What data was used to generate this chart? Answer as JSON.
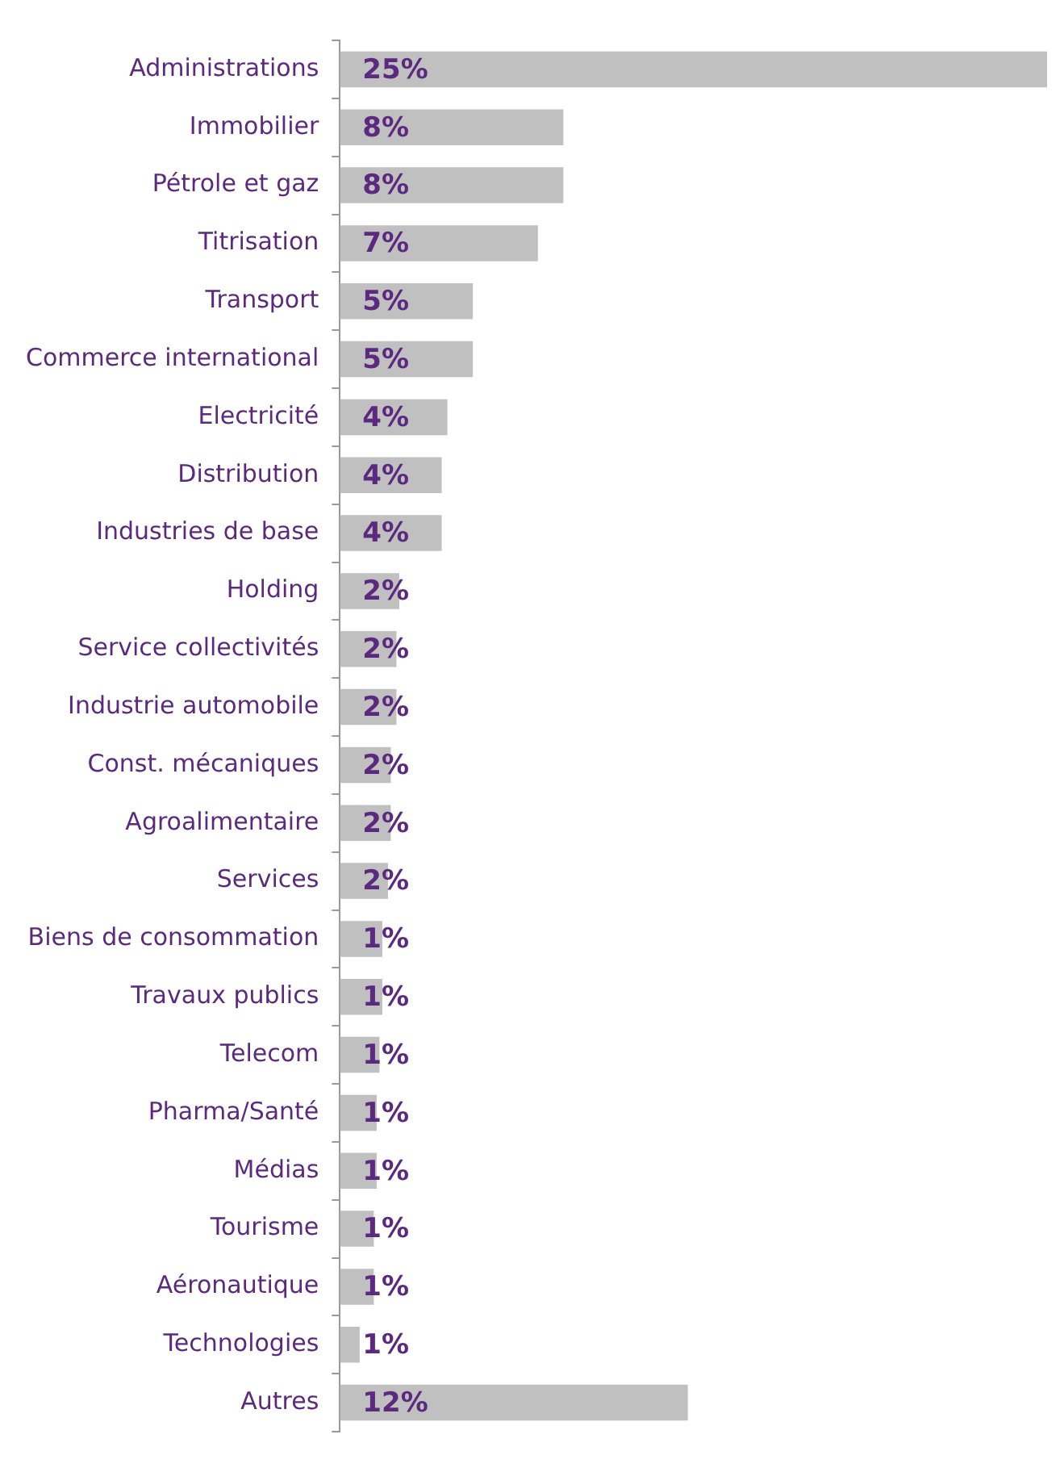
{
  "chart_data": {
    "type": "bar",
    "orientation": "horizontal",
    "categories": [
      "Administrations",
      "Immobilier",
      "Pétrole et gaz",
      "Titrisation",
      "Transport",
      "Commerce international",
      "Electricité",
      "Distribution",
      "Industries de base",
      "Holding",
      "Service collectivités",
      "Industrie automobile",
      "Const. mécaniques",
      "Agroalimentaire",
      "Services",
      "Biens de consommation",
      "Travaux publics",
      "Telecom",
      "Pharma/Santé",
      "Médias",
      "Tourisme",
      "Aéronautique",
      "Technologies",
      "Autres"
    ],
    "values": [
      25,
      7.9,
      7.9,
      7.0,
      4.7,
      4.7,
      3.8,
      3.6,
      3.6,
      2.1,
      2.0,
      2.0,
      1.8,
      1.8,
      1.7,
      1.5,
      1.5,
      1.4,
      1.3,
      1.3,
      1.2,
      1.2,
      0.7,
      12.3
    ],
    "value_labels": [
      "25%",
      "8%",
      "8%",
      "7%",
      "5%",
      "5%",
      "4%",
      "4%",
      "4%",
      "2%",
      "2%",
      "2%",
      "2%",
      "2%",
      "2%",
      "1%",
      "1%",
      "1%",
      "1%",
      "1%",
      "1%",
      "1%",
      "1%",
      "12%"
    ],
    "color": "#c0c0c0"
  }
}
